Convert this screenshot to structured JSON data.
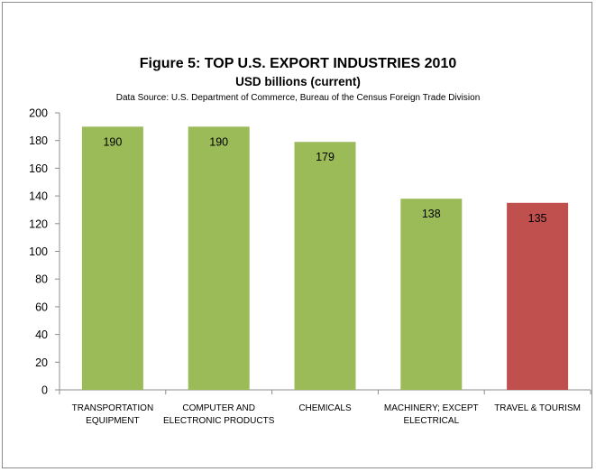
{
  "chart_data": {
    "type": "bar",
    "title": "Figure 5: TOP U.S. EXPORT INDUSTRIES 2010",
    "subtitle": "USD billions (current)",
    "source": "Data Source: U.S. Department of Commerce, Bureau of the Census Foreign Trade Division",
    "categories": [
      [
        "TRANSPORTATION",
        "EQUIPMENT"
      ],
      [
        "COMPUTER AND",
        "ELECTRONIC PRODUCTS"
      ],
      [
        "CHEMICALS"
      ],
      [
        "MACHINERY; EXCEPT",
        "ELECTRICAL"
      ],
      [
        "TRAVEL & TOURISM"
      ]
    ],
    "values": [
      190,
      190,
      179,
      138,
      135
    ],
    "data_labels": [
      "190",
      "190",
      "179",
      "138",
      "135"
    ],
    "bar_colors": [
      "#9bbb59",
      "#9bbb59",
      "#9bbb59",
      "#9bbb59",
      "#c0504d"
    ],
    "ylim": [
      0,
      200
    ],
    "yticks": [
      0,
      20,
      40,
      60,
      80,
      100,
      120,
      140,
      160,
      180,
      200
    ],
    "grid": false,
    "legend": "none"
  }
}
